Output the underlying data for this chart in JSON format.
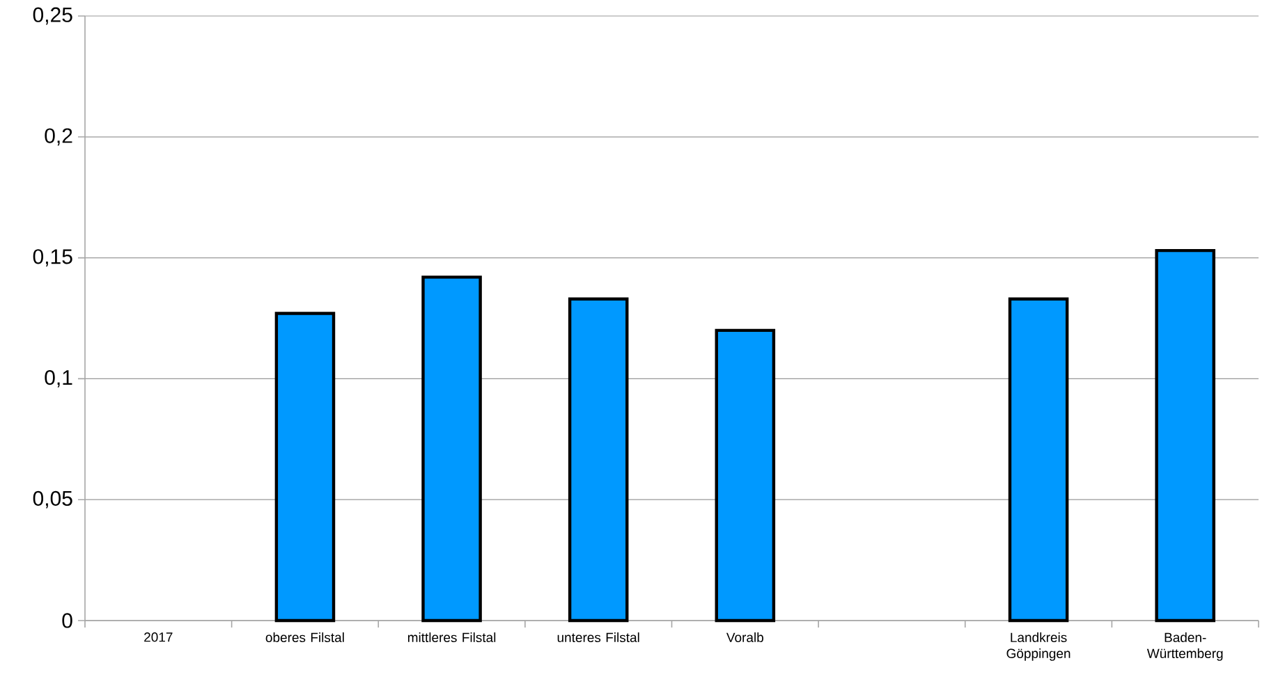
{
  "chart_data": {
    "type": "bar",
    "categories": [
      "2017",
      "oberes Filstal",
      "mittleres Filstal",
      "unteres Filstal",
      "Voralb",
      null,
      "Landkreis Göppingen",
      "Baden-Württemberg"
    ],
    "values": [
      null,
      0.127,
      0.142,
      0.133,
      0.12,
      null,
      0.133,
      0.153
    ],
    "color": "#0099ff",
    "ylim": [
      0,
      0.25
    ],
    "yticks": [
      0,
      {
        "value": 0.05,
        "label": "0,05"
      },
      {
        "value": 0.1,
        "label": "0,1"
      },
      {
        "value": 0.15,
        "label": "0,15"
      },
      {
        "value": 0.2,
        "label": "0,2"
      },
      {
        "value": 0.25,
        "label": "0,25"
      }
    ],
    "grid": "y"
  }
}
